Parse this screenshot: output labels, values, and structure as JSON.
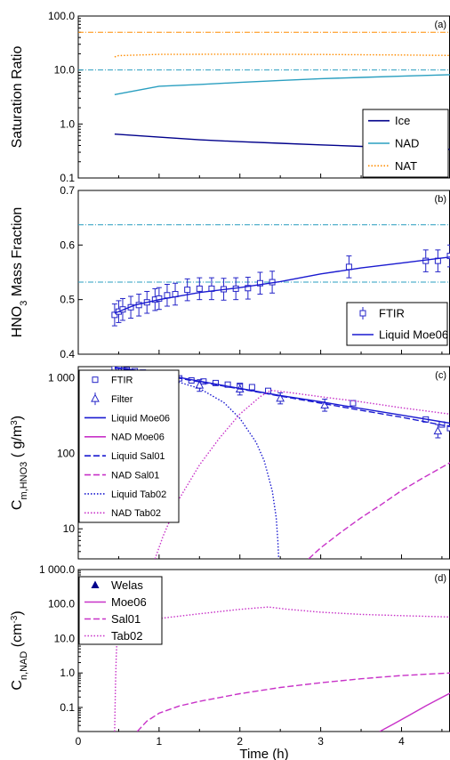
{
  "chart_data": [
    {
      "type": "line",
      "panel_label": "(a)",
      "ylabel": "Saturation Ratio",
      "yscale": "log",
      "ylim": [
        0.1,
        100
      ],
      "yticks": [
        0.1,
        1,
        10,
        100
      ],
      "ytick_labels": [
        "0.1",
        "1.0",
        "10.0",
        "100.0"
      ],
      "xlim": [
        0,
        4.6
      ],
      "grid": false,
      "legend_position": "lower-right",
      "hlines": [
        {
          "y": 50,
          "color": "#ff8c00"
        },
        {
          "y": 10,
          "color": "#2a9fc0"
        }
      ],
      "series": [
        {
          "name": "Ice",
          "color": "#00008b",
          "dash": "solid",
          "x": [
            0.45,
            1.0,
            1.5,
            2.0,
            2.5,
            3.0,
            3.5,
            4.0,
            4.3,
            4.6
          ],
          "y": [
            0.65,
            0.57,
            0.51,
            0.47,
            0.44,
            0.41,
            0.385,
            0.36,
            0.345,
            0.34
          ]
        },
        {
          "name": "NAD",
          "color": "#2a9fc0",
          "dash": "solid",
          "x": [
            0.45,
            1.0,
            1.5,
            2.0,
            2.5,
            3.0,
            3.5,
            4.0,
            4.6
          ],
          "y": [
            3.5,
            5.0,
            5.4,
            5.9,
            6.4,
            6.9,
            7.3,
            7.7,
            8.2
          ]
        },
        {
          "name": "NAT",
          "color": "#ff8c00",
          "dash": "dotted",
          "x": [
            0.45,
            0.5,
            1.0,
            2.0,
            3.0,
            4.0,
            4.6
          ],
          "y": [
            17.5,
            18.5,
            19.5,
            19.6,
            19.4,
            19.0,
            18.6
          ]
        }
      ]
    },
    {
      "type": "line",
      "panel_label": "(b)",
      "ylabel": "HNO3 Mass Fraction",
      "ylim": [
        0.4,
        0.7
      ],
      "yticks": [
        0.4,
        0.5,
        0.6,
        0.7
      ],
      "ytick_labels": [
        "0.4",
        "0.5",
        "0.6",
        "0.7"
      ],
      "xlim": [
        0,
        4.6
      ],
      "grid": false,
      "legend_position": "lower-right",
      "hlines": [
        {
          "y": 0.637,
          "color": "#2a9fc0"
        },
        {
          "y": 0.532,
          "color": "#2a9fc0"
        }
      ],
      "series": [
        {
          "name": "FTIR",
          "marker": "open-square",
          "color": "#2323c8",
          "err": 0.02,
          "x": [
            0.45,
            0.5,
            0.55,
            0.65,
            0.75,
            0.85,
            0.95,
            1.0,
            1.1,
            1.2,
            1.35,
            1.5,
            1.65,
            1.8,
            1.95,
            2.1,
            2.25,
            2.4,
            3.35,
            4.3,
            4.45,
            4.6
          ],
          "y": [
            0.472,
            0.478,
            0.482,
            0.486,
            0.49,
            0.495,
            0.5,
            0.502,
            0.508,
            0.51,
            0.518,
            0.52,
            0.52,
            0.519,
            0.52,
            0.521,
            0.53,
            0.532,
            0.56,
            0.571,
            0.571,
            0.58
          ]
        },
        {
          "name": "Liquid Moe06",
          "color": "#1a1ad0",
          "dash": "solid",
          "x": [
            0.45,
            0.7,
            1.0,
            1.5,
            2.0,
            2.5,
            3.0,
            3.5,
            4.0,
            4.6
          ],
          "y": [
            0.475,
            0.49,
            0.5,
            0.513,
            0.522,
            0.533,
            0.547,
            0.558,
            0.567,
            0.578
          ]
        }
      ]
    },
    {
      "type": "line",
      "panel_label": "(c)",
      "ylabel": "C_m,HNO3 (μg/m3)",
      "yscale": "log",
      "ylim": [
        4,
        1400
      ],
      "yticks": [
        10,
        100,
        1000
      ],
      "ytick_labels": [
        "10",
        "100",
        "1 000"
      ],
      "xlim": [
        0,
        4.6
      ],
      "grid": false,
      "legend_position": "left",
      "series": [
        {
          "name": "FTIR",
          "marker": "open-square",
          "color": "#2323c8",
          "x": [
            0.45,
            0.5,
            0.6,
            0.7,
            0.8,
            0.9,
            1.0,
            1.1,
            1.25,
            1.4,
            1.55,
            1.7,
            1.85,
            2.0,
            2.15,
            2.35,
            3.4,
            4.3,
            4.5,
            4.6
          ],
          "y": [
            1350,
            1320,
            1260,
            1220,
            1170,
            1120,
            1080,
            1030,
            980,
            920,
            890,
            850,
            810,
            780,
            750,
            670,
            460,
            280,
            240,
            215
          ]
        },
        {
          "name": "Filter",
          "marker": "open-triangle",
          "color": "#2323c8",
          "x": [
            1.0,
            1.5,
            2.0,
            2.5,
            3.05,
            4.45
          ],
          "y": [
            920,
            790,
            700,
            530,
            430,
            195
          ],
          "err": [
            [
              760,
              1100
            ],
            [
              660,
              940
            ],
            [
              590,
              820
            ],
            [
              450,
              630
            ],
            [
              360,
              520
            ],
            [
              160,
              240
            ]
          ]
        },
        {
          "name": "Liquid Moe06",
          "color": "#1a1ad0",
          "dash": "solid",
          "x": [
            0.45,
            1.0,
            1.5,
            2.0,
            2.5,
            3.0,
            3.5,
            4.0,
            4.6
          ],
          "y": [
            1380,
            1130,
            900,
            720,
            580,
            480,
            390,
            320,
            250
          ]
        },
        {
          "name": "NAD Moe06",
          "color": "#c832c8",
          "dash": "solid",
          "x": [],
          "y": []
        },
        {
          "name": "Liquid Sal01",
          "color": "#1a1ad0",
          "dash": "dashed",
          "x": [
            0.45,
            1.0,
            1.5,
            2.0,
            2.5,
            3.0,
            3.5,
            4.0,
            4.6
          ],
          "y": [
            1350,
            1100,
            880,
            710,
            570,
            460,
            370,
            300,
            225
          ]
        },
        {
          "name": "NAD Sal01",
          "color": "#c832c8",
          "dash": "dashed",
          "x": [
            2.85,
            3.0,
            3.25,
            3.5,
            3.75,
            4.0,
            4.25,
            4.6
          ],
          "y": [
            4,
            5.6,
            9,
            14,
            21,
            32,
            46,
            75
          ]
        },
        {
          "name": "Liquid Tab02",
          "color": "#1a1ad0",
          "dash": "dotted",
          "x": [
            0.45,
            1.0,
            1.5,
            1.8,
            2.0,
            2.2,
            2.3,
            2.4,
            2.45,
            2.47,
            2.48
          ],
          "y": [
            1330,
            1050,
            720,
            470,
            290,
            140,
            80,
            32,
            14,
            7,
            4
          ]
        },
        {
          "name": "NAD Tab02",
          "color": "#c832c8",
          "dash": "dotted",
          "x": [
            0.95,
            1.05,
            1.25,
            1.5,
            1.75,
            2.0,
            2.25,
            2.38,
            2.6,
            3.0,
            3.5,
            4.0,
            4.6
          ],
          "y": [
            4,
            8,
            25,
            70,
            160,
            330,
            560,
            680,
            640,
            560,
            480,
            400,
            330
          ]
        }
      ]
    },
    {
      "type": "line",
      "panel_label": "(d)",
      "ylabel": "C_n,NAD (cm-3)",
      "yscale": "log",
      "ylim": [
        0.02,
        1000
      ],
      "yticks": [
        0.1,
        1,
        10,
        100,
        1000
      ],
      "ytick_labels": [
        "0.1",
        "1.0",
        "10.0",
        "100.0",
        "1 000.0"
      ],
      "xlim": [
        0,
        4.6
      ],
      "xticks": [
        0,
        1,
        2,
        3,
        4
      ],
      "xlabel": "Time (h)",
      "grid": false,
      "legend_position": "top-left",
      "series": [
        {
          "name": "Welas",
          "marker": "filled-triangle",
          "color": "#00008b",
          "x": [],
          "y": []
        },
        {
          "name": "Moe06",
          "color": "#c832c8",
          "dash": "solid",
          "x": [
            3.73,
            3.9,
            4.1,
            4.3,
            4.45,
            4.6
          ],
          "y": [
            0.02,
            0.033,
            0.06,
            0.11,
            0.17,
            0.26
          ]
        },
        {
          "name": "Sal01",
          "color": "#c832c8",
          "dash": "dashed",
          "x": [
            0.73,
            0.85,
            1.0,
            1.25,
            1.5,
            2.0,
            2.5,
            3.0,
            3.5,
            4.0,
            4.6
          ],
          "y": [
            0.02,
            0.04,
            0.068,
            0.11,
            0.15,
            0.25,
            0.38,
            0.52,
            0.68,
            0.84,
            1.0
          ]
        },
        {
          "name": "Tab02",
          "color": "#c832c8",
          "dash": "dotted",
          "x": [
            0.45,
            0.46,
            0.47,
            0.48,
            0.5,
            0.55,
            0.7,
            1.0,
            1.5,
            2.0,
            2.35,
            2.6,
            3.0,
            3.5,
            4.0,
            4.6
          ],
          "y": [
            0.02,
            0.4,
            3.0,
            10,
            17,
            22,
            27,
            38,
            52,
            70,
            82,
            70,
            58,
            50,
            46,
            42
          ]
        }
      ]
    }
  ]
}
